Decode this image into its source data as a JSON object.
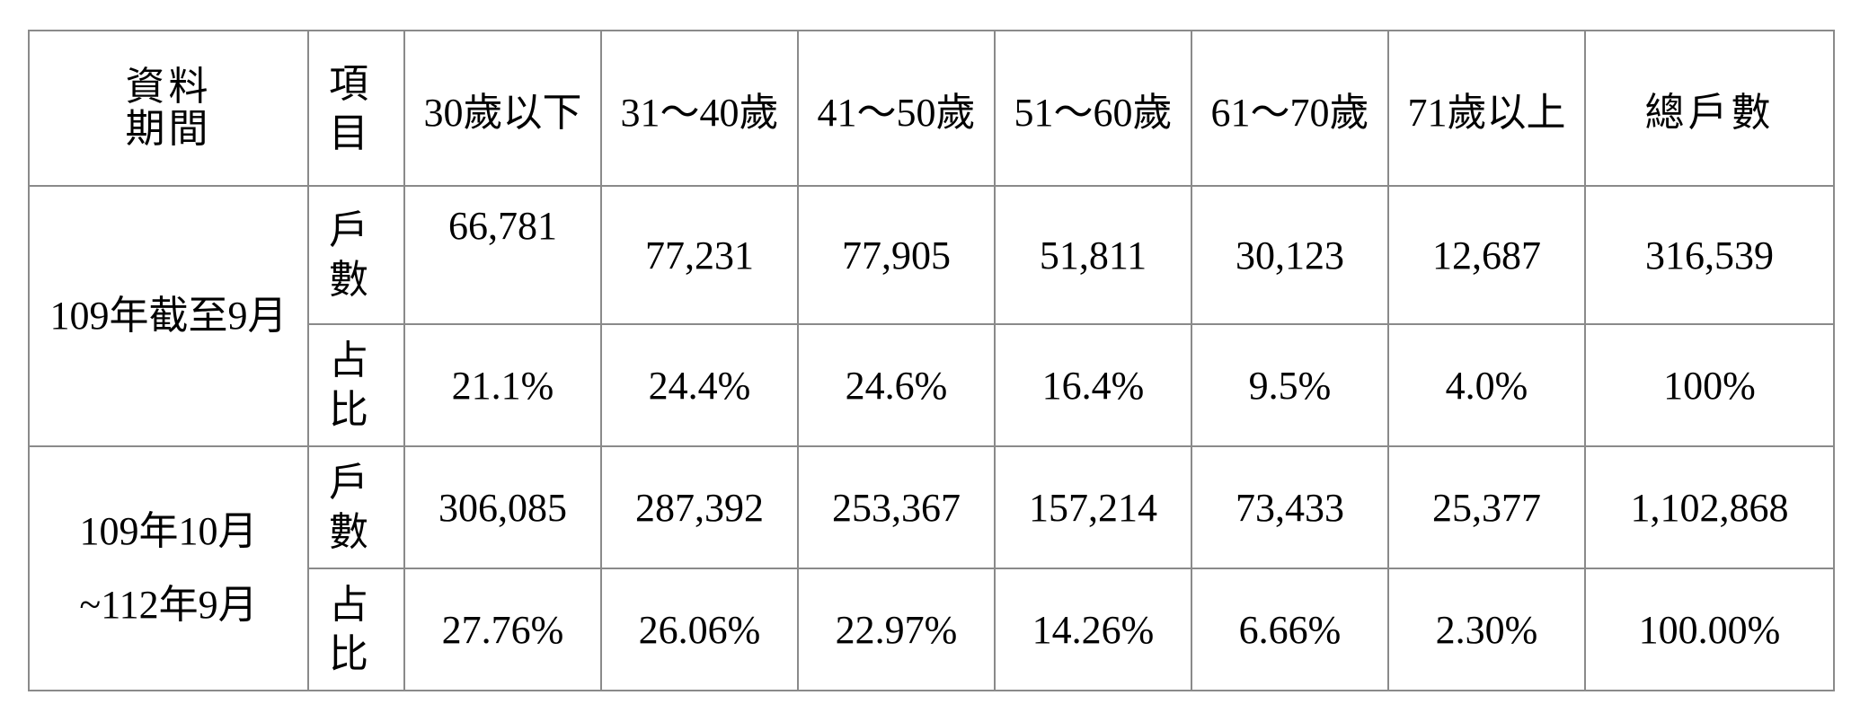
{
  "table": {
    "header": {
      "period_lines": [
        "資料",
        "期間"
      ],
      "item_lines": [
        "項",
        "目"
      ],
      "columns": [
        "30歲以下",
        "31～40歲",
        "41～50歲",
        "51～60歲",
        "61～70歲",
        "71歲以上",
        "總戶數"
      ]
    },
    "groups": [
      {
        "period_lines": [
          "109年截至9月"
        ],
        "rows": [
          {
            "item_lines": [
              "戶",
              "數"
            ],
            "values": [
              "66,781",
              "77,231",
              "77,905",
              "51,811",
              "30,123",
              "12,687",
              "316,539"
            ]
          },
          {
            "item_lines": [
              "占",
              "比"
            ],
            "values": [
              "21.1%",
              "24.4%",
              "24.6%",
              "16.4%",
              "9.5%",
              "4.0%",
              "100%"
            ]
          }
        ]
      },
      {
        "period_lines": [
          "109年10月",
          "~112年9月"
        ],
        "rows": [
          {
            "item_lines": [
              "戶",
              "數"
            ],
            "values": [
              "306,085",
              "287,392",
              "253,367",
              "157,214",
              "73,433",
              "25,377",
              "1,102,868"
            ]
          },
          {
            "item_lines": [
              "占",
              "比"
            ],
            "values": [
              "27.76%",
              "26.06%",
              "22.97%",
              "14.26%",
              "6.66%",
              "2.30%",
              "100.00%"
            ]
          }
        ]
      }
    ]
  }
}
